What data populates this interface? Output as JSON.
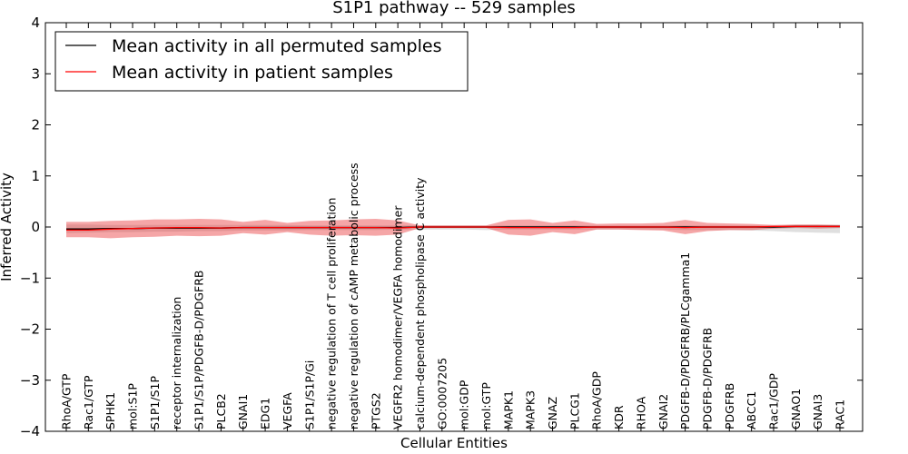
{
  "chart_data": {
    "type": "line",
    "title": "S1P1 pathway -- 529 samples",
    "xlabel": "Cellular Entities",
    "ylabel": "Inferred Activity",
    "ylim": [
      -4,
      4
    ],
    "yticks": [
      -4,
      -3,
      -2,
      -1,
      0,
      1,
      2,
      3,
      4
    ],
    "ytick_labels": [
      "−4",
      "−3",
      "−2",
      "−1",
      "0",
      "1",
      "2",
      "3",
      "4"
    ],
    "grid": false,
    "legend_position": "top-left",
    "categories": [
      "RhoA/GTP",
      "Rac1/GTP",
      "SPHK1",
      "mol:S1P",
      "S1P1/S1P",
      "receptor internalization",
      "S1P1/S1P/PDGFB-D/PDGFRB",
      "PLCB2",
      "GNAI1",
      "EDG1",
      "VEGFA",
      "S1P1/S1P/Gi",
      "negative regulation of T cell proliferation",
      "negative regulation of cAMP metabolic process",
      "PTGS2",
      "VEGFR2 homodimer/VEGFA homodimer",
      "calcium-dependent phospholipase C activity",
      "GO:0007205",
      "mol:GDP",
      "mol:GTP",
      "MAPK1",
      "MAPK3",
      "GNAZ",
      "PLCG1",
      "RhoA/GDP",
      "KDR",
      "RHOA",
      "GNAI2",
      "PDGFB-D/PDGFRB/PLCgamma1",
      "PDGFB-D/PDGFRB",
      "PDGFRB",
      "ABCC1",
      "Rac1/GDP",
      "GNAO1",
      "GNAI3",
      "RAC1"
    ],
    "series": [
      {
        "name": "Mean activity in all permuted samples",
        "color": "#000000",
        "values": [
          -0.04,
          -0.04,
          -0.03,
          -0.03,
          -0.02,
          -0.02,
          -0.02,
          -0.02,
          -0.01,
          -0.01,
          -0.01,
          -0.01,
          -0.01,
          -0.01,
          -0.01,
          -0.01,
          0.0,
          0.0,
          0.0,
          0.0,
          0.0,
          0.0,
          0.0,
          0.0,
          0.0,
          0.0,
          0.0,
          0.0,
          0.0,
          0.0,
          0.0,
          0.0,
          0.0,
          0.01,
          0.01,
          0.01
        ],
        "band_low": [
          -0.12,
          -0.11,
          -0.1,
          -0.1,
          -0.09,
          -0.09,
          -0.08,
          -0.08,
          -0.07,
          -0.07,
          -0.07,
          -0.06,
          -0.06,
          -0.06,
          -0.06,
          -0.05,
          -0.05,
          -0.05,
          -0.05,
          -0.06,
          -0.05,
          -0.05,
          -0.05,
          -0.05,
          -0.05,
          -0.05,
          -0.05,
          -0.05,
          -0.06,
          -0.06,
          -0.06,
          -0.07,
          -0.08,
          -0.1,
          -0.11,
          -0.12
        ],
        "band_high": [
          0.05,
          0.05,
          0.04,
          0.04,
          0.04,
          0.04,
          0.04,
          0.04,
          0.04,
          0.04,
          0.04,
          0.03,
          0.03,
          0.03,
          0.03,
          0.03,
          0.03,
          0.03,
          0.03,
          0.03,
          0.03,
          0.03,
          0.03,
          0.03,
          0.03,
          0.03,
          0.03,
          0.03,
          0.03,
          0.03,
          0.03,
          0.03,
          0.03,
          0.04,
          0.04,
          0.04
        ]
      },
      {
        "name": "Mean activity in patient samples",
        "color": "#ff0000",
        "values": [
          -0.06,
          -0.06,
          -0.04,
          -0.03,
          -0.02,
          -0.01,
          -0.01,
          -0.02,
          -0.01,
          -0.01,
          -0.01,
          -0.01,
          -0.01,
          -0.01,
          -0.01,
          -0.02,
          0.0,
          0.0,
          0.0,
          0.0,
          -0.01,
          -0.01,
          -0.01,
          -0.01,
          0.0,
          0.0,
          0.0,
          0.0,
          -0.01,
          0.0,
          0.0,
          0.0,
          0.01,
          0.01,
          0.01,
          0.01
        ],
        "band_low": [
          -0.2,
          -0.2,
          -0.22,
          -0.2,
          -0.19,
          -0.17,
          -0.18,
          -0.17,
          -0.12,
          -0.15,
          -0.1,
          -0.15,
          -0.17,
          -0.16,
          -0.17,
          -0.15,
          -0.02,
          -0.02,
          -0.02,
          -0.02,
          -0.15,
          -0.17,
          -0.1,
          -0.14,
          -0.05,
          -0.05,
          -0.06,
          -0.07,
          -0.14,
          -0.08,
          -0.06,
          -0.06,
          -0.03,
          -0.02,
          -0.03,
          -0.02
        ],
        "band_high": [
          0.1,
          0.1,
          0.12,
          0.13,
          0.15,
          0.15,
          0.16,
          0.15,
          0.1,
          0.14,
          0.08,
          0.12,
          0.13,
          0.15,
          0.16,
          0.13,
          0.03,
          0.03,
          0.03,
          0.03,
          0.14,
          0.15,
          0.08,
          0.13,
          0.06,
          0.07,
          0.07,
          0.08,
          0.14,
          0.08,
          0.07,
          0.06,
          0.04,
          0.05,
          0.05,
          0.04
        ]
      }
    ]
  }
}
